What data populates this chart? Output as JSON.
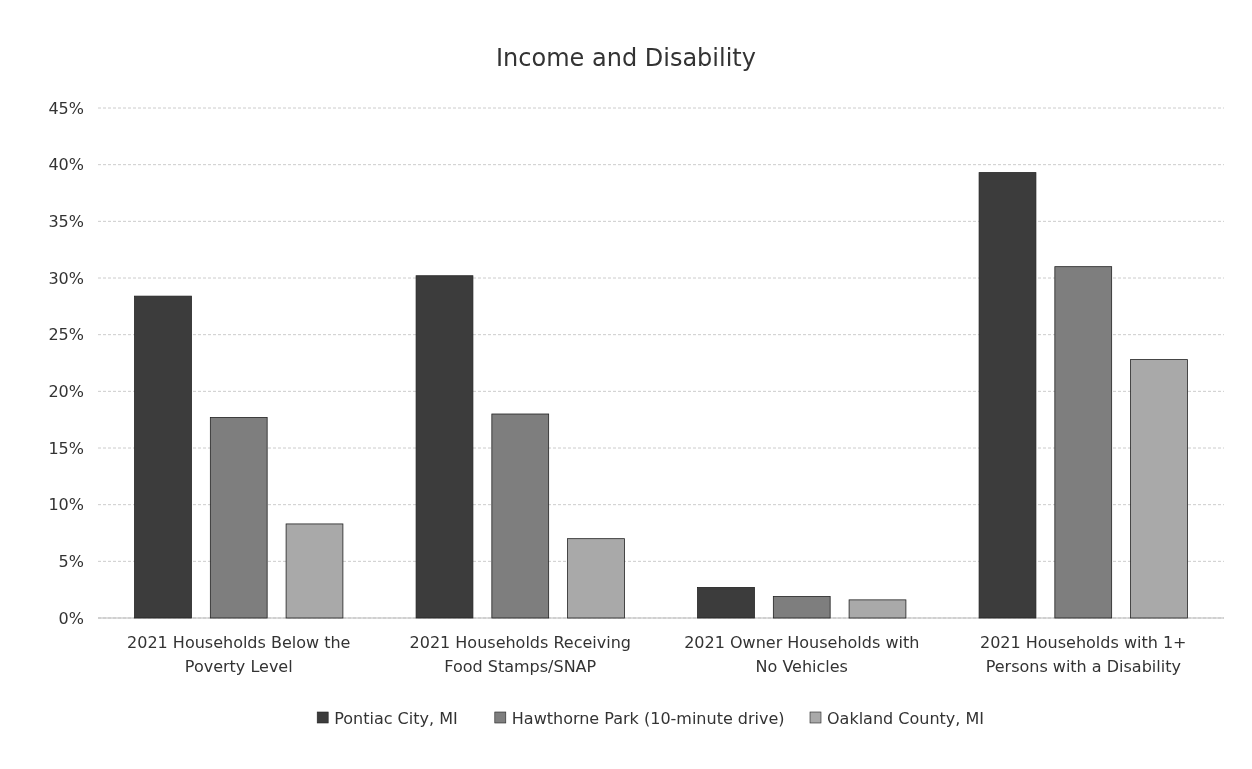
{
  "chart_data": {
    "type": "bar",
    "title": "Income and Disability",
    "categories": [
      "2021 Households Below the Poverty Level",
      "2021 Households Receiving Food Stamps/SNAP",
      "2021 Owner Households with No Vehicles",
      "2021 Households with 1+ Persons with a Disability"
    ],
    "series": [
      {
        "name": "Pontiac City, MI",
        "color": "#3c3c3c",
        "values": [
          28.4,
          30.2,
          2.7,
          39.3
        ]
      },
      {
        "name": "Hawthorne Park (10-minute drive)",
        "color": "#7e7e7e",
        "values": [
          17.7,
          18.0,
          1.9,
          31.0
        ]
      },
      {
        "name": "Oakland County, MI",
        "color": "#a9a9a9",
        "values": [
          8.3,
          7.0,
          1.6,
          22.8
        ]
      }
    ],
    "ylim": [
      0,
      45
    ],
    "yticks": [
      {
        "value": 0,
        "label": "0%"
      },
      {
        "value": 5,
        "label": "5%"
      },
      {
        "value": 10,
        "label": "10%"
      },
      {
        "value": 15,
        "label": "15%"
      },
      {
        "value": 20,
        "label": "20%"
      },
      {
        "value": 25,
        "label": "25%"
      },
      {
        "value": 30,
        "label": "30%"
      },
      {
        "value": 35,
        "label": "35%"
      },
      {
        "value": 40,
        "label": "40%"
      },
      {
        "value": 45,
        "label": "45%"
      }
    ],
    "grid": "y",
    "legend": "bottom"
  }
}
